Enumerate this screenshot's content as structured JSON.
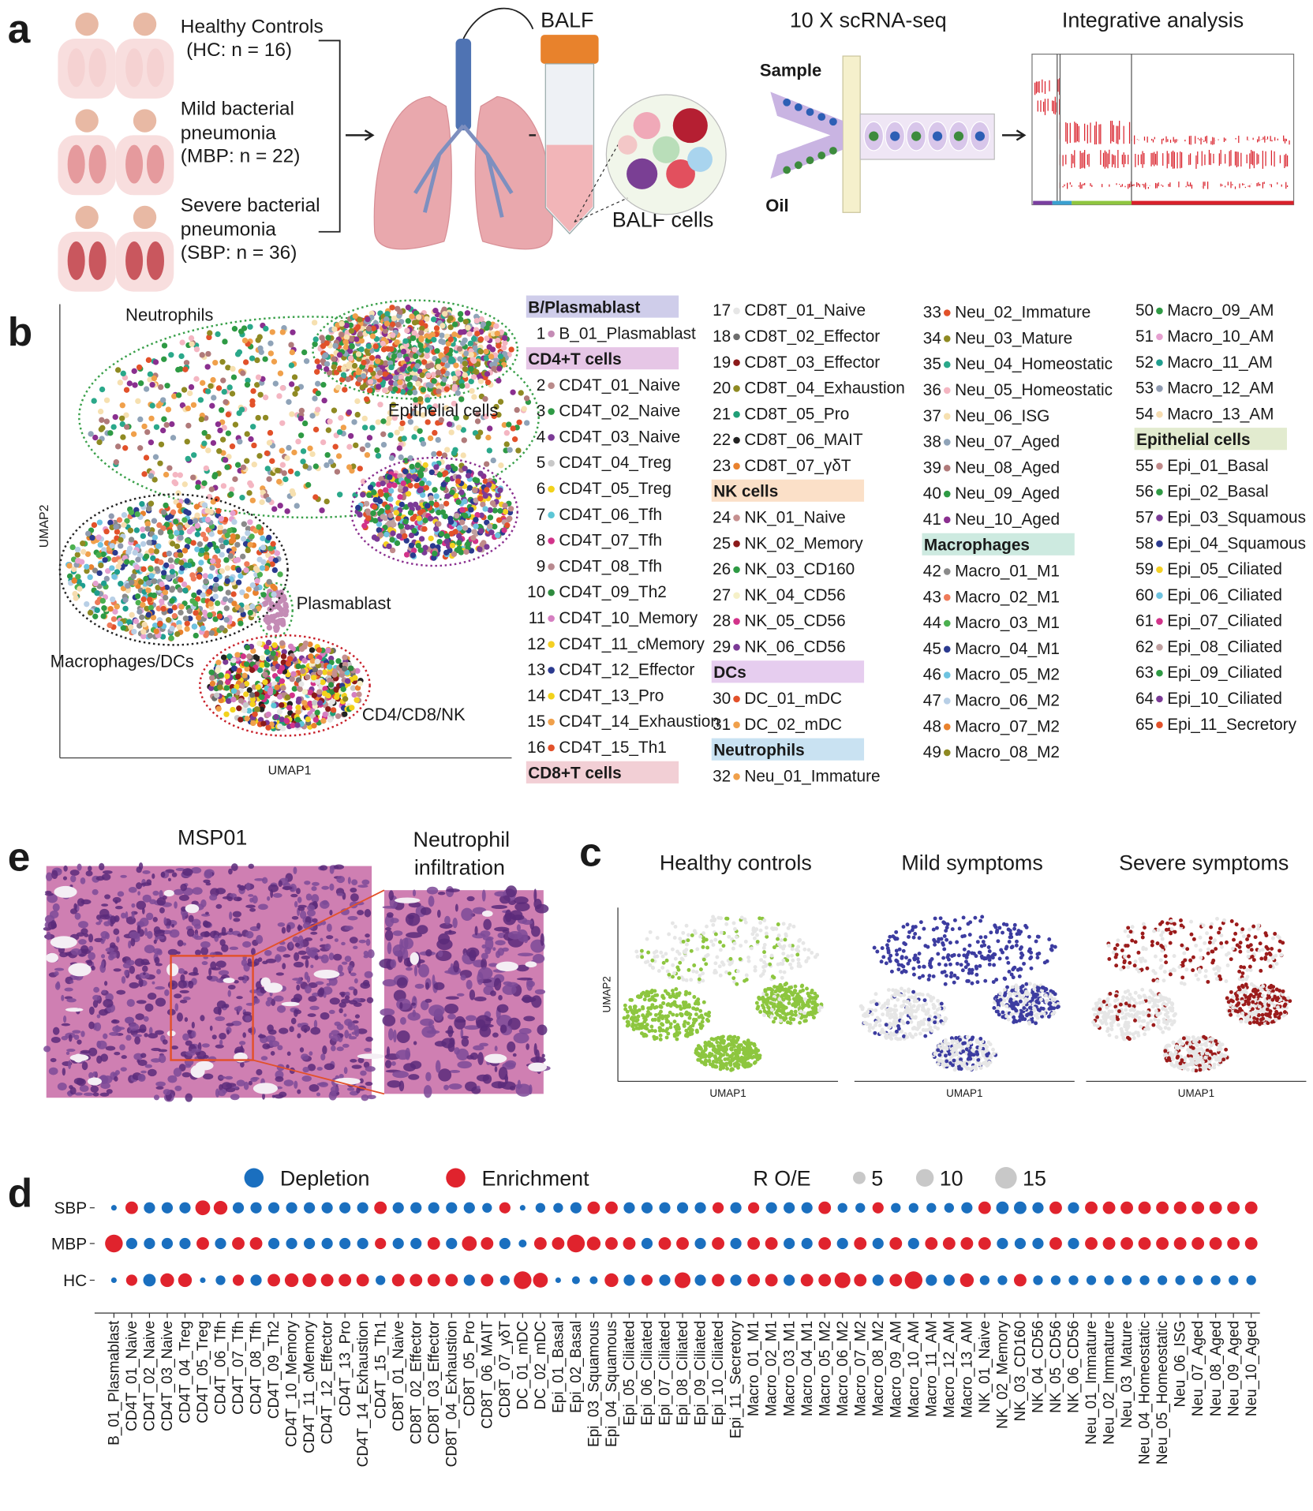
{
  "panel_a": {
    "label": "a",
    "groups": [
      {
        "lines": [
          "Healthy Controls",
          "(HC: n = 16)"
        ]
      },
      {
        "lines": [
          "Mild bacterial",
          "pneumonia",
          "(MBP: n = 22)"
        ]
      },
      {
        "lines": [
          "Severe bacterial",
          "pneumonia",
          "(SBP: n = 36)"
        ]
      }
    ],
    "balf": "BALF",
    "balf_cells": "BALF cells",
    "seq_title": "10 X scRNA-seq",
    "sample": "Sample",
    "oil": "Oil",
    "analysis_title": "Integrative analysis"
  },
  "panel_b": {
    "label": "b",
    "x_axis": "UMAP1",
    "y_axis": "UMAP2",
    "regions": [
      "Neutrophils",
      "Epithelial cells",
      "Plasmablast",
      "Macrophages/DCs",
      "CD4/CD8/NK"
    ],
    "legend_columns": [
      [
        {
          "header": "B/Plasmablast",
          "color": "#cfcdea"
        },
        {
          "n": 1,
          "name": "B_01_Plasmablast",
          "color": "#c48bb5"
        },
        {
          "header": "CD4+T cells",
          "color": "#e6c6e6"
        },
        {
          "n": 2,
          "name": "CD4T_01_Naive",
          "color": "#b98a8a"
        },
        {
          "n": 3,
          "name": "CD4T_02_Naive",
          "color": "#2e9a44"
        },
        {
          "n": 4,
          "name": "CD4T_03_Naive",
          "color": "#7b3a96"
        },
        {
          "n": 5,
          "name": "CD4T_04_Treg",
          "color": "#c8c8c8"
        },
        {
          "n": 6,
          "name": "CD4T_05_Treg",
          "color": "#f2d21b"
        },
        {
          "n": 7,
          "name": "CD4T_06_Tfh",
          "color": "#5cc6d6"
        },
        {
          "n": 8,
          "name": "CD4T_07_Tfh",
          "color": "#d2338a"
        },
        {
          "n": 9,
          "name": "CD4T_08_Tfh",
          "color": "#b8898f"
        },
        {
          "n": 10,
          "name": "CD4T_09_Th2",
          "color": "#2e8b3e"
        },
        {
          "n": 11,
          "name": "CD4T_10_Memory",
          "color": "#d57fc1"
        },
        {
          "n": 12,
          "name": "CD4T_11_cMemory",
          "color": "#f4d023"
        },
        {
          "n": 13,
          "name": "CD4T_12_Effector",
          "color": "#2b3a8f"
        },
        {
          "n": 14,
          "name": "CD4T_13_Pro",
          "color": "#f2d21b"
        },
        {
          "n": 15,
          "name": "CD4T_14_Exhaustion",
          "color": "#f0a04b"
        },
        {
          "n": 16,
          "name": "CD4T_15_Th1",
          "color": "#e2512a"
        },
        {
          "header": "CD8+T cells",
          "color": "#f2cfd5"
        }
      ],
      [
        {
          "n": 17,
          "name": "CD8T_01_Naive",
          "color": "#e6e6e6"
        },
        {
          "n": 18,
          "name": "CD8T_02_Effector",
          "color": "#6d6d6d"
        },
        {
          "n": 19,
          "name": "CD8T_03_Effector",
          "color": "#8b1a1a"
        },
        {
          "n": 20,
          "name": "CD8T_04_Exhaustion",
          "color": "#8f8a23"
        },
        {
          "n": 21,
          "name": "CD8T_05_Pro",
          "color": "#1f9e77"
        },
        {
          "n": 22,
          "name": "CD8T_06_MAIT",
          "color": "#222222"
        },
        {
          "n": 23,
          "name": "CD8T_07_γδT",
          "color": "#e9822e"
        },
        {
          "header": "NK cells",
          "color": "#fbe0c8"
        },
        {
          "n": 24,
          "name": "NK_01_Naive",
          "color": "#c58f8f"
        },
        {
          "n": 25,
          "name": "NK_02_Memory",
          "color": "#8b1a1a"
        },
        {
          "n": 26,
          "name": "NK_03_CD160",
          "color": "#2e9a44"
        },
        {
          "n": 27,
          "name": "NK_04_CD56",
          "color": "#f5f0c8"
        },
        {
          "n": 28,
          "name": "NK_05_CD56",
          "color": "#d2338a"
        },
        {
          "n": 29,
          "name": "NK_06_CD56",
          "color": "#7b3a96"
        },
        {
          "header": "DCs",
          "color": "#e6cdef"
        },
        {
          "n": 30,
          "name": "DC_01_mDC",
          "color": "#e2512a"
        },
        {
          "n": 31,
          "name": "DC_02_mDC",
          "color": "#f0a04b"
        },
        {
          "header": "Neutrophils",
          "color": "#c9e2f2"
        },
        {
          "n": 32,
          "name": "Neu_01_Immature",
          "color": "#f0a04b"
        }
      ],
      [
        {
          "n": 33,
          "name": "Neu_02_Immature",
          "color": "#e2512a"
        },
        {
          "n": 34,
          "name": "Neu_03_Mature",
          "color": "#8f8a23"
        },
        {
          "n": 35,
          "name": "Neu_04_Homeostatic",
          "color": "#2aa88a"
        },
        {
          "n": 36,
          "name": "Neu_05_Homeostatic",
          "color": "#f4b6c2"
        },
        {
          "n": 37,
          "name": "Neu_06_ISG",
          "color": "#f6e0b0"
        },
        {
          "n": 38,
          "name": "Neu_07_Aged",
          "color": "#8fa3b8"
        },
        {
          "n": 39,
          "name": "Neu_08_Aged",
          "color": "#b07a7a"
        },
        {
          "n": 40,
          "name": "Neu_09_Aged",
          "color": "#2e9a44"
        },
        {
          "n": 41,
          "name": "Neu_10_Aged",
          "color": "#8a2f8f"
        },
        {
          "header": "Macrophages",
          "color": "#cdeae0"
        },
        {
          "n": 42,
          "name": "Macro_01_M1",
          "color": "#8a8a8a"
        },
        {
          "n": 43,
          "name": "Macro_02_M1",
          "color": "#ef7b5a"
        },
        {
          "n": 44,
          "name": "Macro_03_M1",
          "color": "#4bb04f"
        },
        {
          "n": 45,
          "name": "Macro_04_M1",
          "color": "#2b3a8f"
        },
        {
          "n": 46,
          "name": "Macro_05_M2",
          "color": "#6ec3e0"
        },
        {
          "n": 47,
          "name": "Macro_06_M2",
          "color": "#b8cfe6"
        },
        {
          "n": 48,
          "name": "Macro_07_M2",
          "color": "#e9822e"
        },
        {
          "n": 49,
          "name": "Macro_08_M2",
          "color": "#8f8a23"
        }
      ],
      [
        {
          "n": 50,
          "name": "Macro_09_AM",
          "color": "#2e9a44"
        },
        {
          "n": 51,
          "name": "Macro_10_AM",
          "color": "#e6a0d0"
        },
        {
          "n": 52,
          "name": "Macro_11_AM",
          "color": "#1f9e8f"
        },
        {
          "n": 53,
          "name": "Macro_12_AM",
          "color": "#8f9ab0"
        },
        {
          "n": 54,
          "name": "Macro_13_AM",
          "color": "#f6dcb0"
        },
        {
          "header": "Epithelial cells",
          "color": "#e2ebcf"
        },
        {
          "n": 55,
          "name": "Epi_01_Basal",
          "color": "#c08a8a"
        },
        {
          "n": 56,
          "name": "Epi_02_Basal",
          "color": "#2e9a44"
        },
        {
          "n": 57,
          "name": "Epi_03_Squamous",
          "color": "#7b3a96"
        },
        {
          "n": 58,
          "name": "Epi_04_Squamous",
          "color": "#2b3a8f"
        },
        {
          "n": 59,
          "name": "Epi_05_Ciliated",
          "color": "#f4d023"
        },
        {
          "n": 60,
          "name": "Epi_06_Ciliated",
          "color": "#6ec3e0"
        },
        {
          "n": 61,
          "name": "Epi_07_Ciliated",
          "color": "#d2338a"
        },
        {
          "n": 62,
          "name": "Epi_08_Ciliated",
          "color": "#c0a0a0"
        },
        {
          "n": 63,
          "name": "Epi_09_Ciliated",
          "color": "#2e9a44"
        },
        {
          "n": 64,
          "name": "Epi_10_Ciliated",
          "color": "#7b3a96"
        },
        {
          "n": 65,
          "name": "Epi_11_Secretory",
          "color": "#e2512a"
        }
      ]
    ]
  },
  "panel_c": {
    "label": "c",
    "x_axis": "UMAP1",
    "y_axis": "UMAP2",
    "panels": [
      {
        "title": "Healthy controls",
        "color": "#8dc63f"
      },
      {
        "title": "Mild symptoms",
        "color": "#3c3ca0"
      },
      {
        "title": "Severe symptoms",
        "color": "#9b1b1b"
      }
    ]
  },
  "panel_d": {
    "label": "d",
    "legend": [
      {
        "name": "Depletion",
        "color": "#1a6fbf"
      },
      {
        "name": "Enrichment",
        "color": "#e0232d"
      }
    ],
    "size_title": "R O/E",
    "size_legend": [
      5,
      10,
      15
    ],
    "rows": [
      {
        "name": "SBP",
        "values": [
          1,
          5,
          4,
          4,
          4,
          7,
          6,
          4,
          4,
          4,
          4,
          4,
          4,
          4,
          4,
          5,
          4,
          4,
          4,
          4,
          4,
          3,
          4,
          1,
          3,
          3,
          4,
          5,
          5,
          4,
          4,
          4,
          4,
          4,
          4,
          4,
          4,
          4,
          4,
          4,
          5,
          3,
          3,
          4,
          3,
          3,
          3,
          3,
          4,
          5,
          5,
          5,
          4,
          5,
          4,
          5,
          5,
          5,
          5,
          5,
          5,
          5,
          5,
          5,
          5
        ],
        "colors": [
          "#1a6fbf",
          "#e0232d",
          "#1a6fbf",
          "#1a6fbf",
          "#1a6fbf",
          "#e0232d",
          "#e0232d",
          "#1a6fbf",
          "#1a6fbf",
          "#1a6fbf",
          "#1a6fbf",
          "#1a6fbf",
          "#1a6fbf",
          "#1a6fbf",
          "#1a6fbf",
          "#e0232d",
          "#1a6fbf",
          "#1a6fbf",
          "#1a6fbf",
          "#1a6fbf",
          "#1a6fbf",
          "#1a6fbf",
          "#e0232d",
          "#1a6fbf",
          "#1a6fbf",
          "#1a6fbf",
          "#1a6fbf",
          "#e0232d",
          "#e0232d",
          "#1a6fbf",
          "#1a6fbf",
          "#1a6fbf",
          "#1a6fbf",
          "#1a6fbf",
          "#e0232d",
          "#1a6fbf",
          "#e0232d",
          "#1a6fbf",
          "#1a6fbf",
          "#1a6fbf",
          "#e0232d",
          "#1a6fbf",
          "#1a6fbf",
          "#e0232d",
          "#1a6fbf",
          "#1a6fbf",
          "#1a6fbf",
          "#1a6fbf",
          "#1a6fbf",
          "#e0232d",
          "#1a6fbf",
          "#1a6fbf",
          "#1a6fbf",
          "#e0232d",
          "#1a6fbf",
          "#e0232d",
          "#e0232d",
          "#e0232d",
          "#e0232d",
          "#e0232d",
          "#e0232d",
          "#e0232d",
          "#e0232d",
          "#e0232d",
          "#e0232d"
        ]
      },
      {
        "name": "MBP",
        "values": [
          10,
          4,
          4,
          4,
          4,
          5,
          4,
          5,
          5,
          4,
          4,
          4,
          4,
          4,
          4,
          4,
          4,
          4,
          5,
          4,
          7,
          5,
          4,
          2,
          5,
          5,
          10,
          6,
          5,
          5,
          4,
          5,
          5,
          4,
          5,
          4,
          5,
          5,
          4,
          4,
          5,
          4,
          5,
          4,
          5,
          4,
          5,
          5,
          5,
          5,
          4,
          4,
          4,
          5,
          4,
          5,
          5,
          5,
          5,
          5,
          5,
          5,
          5,
          5,
          5
        ],
        "colors": [
          "#e0232d",
          "#1a6fbf",
          "#1a6fbf",
          "#1a6fbf",
          "#1a6fbf",
          "#e0232d",
          "#1a6fbf",
          "#e0232d",
          "#e0232d",
          "#1a6fbf",
          "#1a6fbf",
          "#1a6fbf",
          "#1a6fbf",
          "#1a6fbf",
          "#1a6fbf",
          "#e0232d",
          "#1a6fbf",
          "#1a6fbf",
          "#e0232d",
          "#1a6fbf",
          "#e0232d",
          "#e0232d",
          "#1a6fbf",
          "#1a6fbf",
          "#e0232d",
          "#e0232d",
          "#e0232d",
          "#e0232d",
          "#e0232d",
          "#e0232d",
          "#1a6fbf",
          "#e0232d",
          "#e0232d",
          "#1a6fbf",
          "#e0232d",
          "#1a6fbf",
          "#e0232d",
          "#e0232d",
          "#1a6fbf",
          "#1a6fbf",
          "#e0232d",
          "#1a6fbf",
          "#e0232d",
          "#1a6fbf",
          "#e0232d",
          "#1a6fbf",
          "#e0232d",
          "#e0232d",
          "#e0232d",
          "#e0232d",
          "#1a6fbf",
          "#1a6fbf",
          "#1a6fbf",
          "#e0232d",
          "#1a6fbf",
          "#e0232d",
          "#e0232d",
          "#e0232d",
          "#e0232d",
          "#e0232d",
          "#e0232d",
          "#e0232d",
          "#e0232d",
          "#e0232d",
          "#e0232d"
        ]
      },
      {
        "name": "HC",
        "values": [
          1,
          4,
          5,
          6,
          6,
          1,
          3,
          4,
          4,
          5,
          6,
          6,
          5,
          5,
          5,
          3,
          5,
          5,
          5,
          5,
          4,
          5,
          3,
          10,
          7,
          1,
          2,
          2,
          6,
          4,
          4,
          4,
          8,
          4,
          5,
          4,
          5,
          5,
          4,
          5,
          5,
          8,
          5,
          4,
          5,
          10,
          4,
          4,
          6,
          3,
          3,
          5,
          3,
          3,
          3,
          3,
          3,
          3,
          3,
          3,
          3,
          3,
          3,
          3,
          3
        ],
        "colors": [
          "#1a6fbf",
          "#e0232d",
          "#1a6fbf",
          "#e0232d",
          "#e0232d",
          "#1a6fbf",
          "#1a6fbf",
          "#e0232d",
          "#1a6fbf",
          "#e0232d",
          "#e0232d",
          "#e0232d",
          "#e0232d",
          "#e0232d",
          "#e0232d",
          "#1a6fbf",
          "#e0232d",
          "#e0232d",
          "#e0232d",
          "#e0232d",
          "#1a6fbf",
          "#e0232d",
          "#1a6fbf",
          "#e0232d",
          "#e0232d",
          "#1a6fbf",
          "#1a6fbf",
          "#1a6fbf",
          "#e0232d",
          "#1a6fbf",
          "#e0232d",
          "#1a6fbf",
          "#e0232d",
          "#1a6fbf",
          "#e0232d",
          "#1a6fbf",
          "#e0232d",
          "#e0232d",
          "#1a6fbf",
          "#e0232d",
          "#e0232d",
          "#e0232d",
          "#e0232d",
          "#1a6fbf",
          "#e0232d",
          "#e0232d",
          "#1a6fbf",
          "#1a6fbf",
          "#e0232d",
          "#1a6fbf",
          "#1a6fbf",
          "#e0232d",
          "#1a6fbf",
          "#1a6fbf",
          "#1a6fbf",
          "#1a6fbf",
          "#1a6fbf",
          "#1a6fbf",
          "#1a6fbf",
          "#1a6fbf",
          "#1a6fbf",
          "#1a6fbf",
          "#1a6fbf",
          "#1a6fbf",
          "#1a6fbf"
        ]
      }
    ],
    "categories": [
      "B_01_Plasmablast",
      "CD4T_01_Naive",
      "CD4T_02_Naive",
      "CD4T_03_Naive",
      "CD4T_04_Treg",
      "CD4T_05_Treg",
      "CD4T_06_Tfh",
      "CD4T_07_Tfh",
      "CD4T_08_Tfh",
      "CD4T_09_Th2",
      "CD4T_10_Memory",
      "CD4T_11_cMemory",
      "CD4T_12_Effector",
      "CD4T_13_Pro",
      "CD4T_14_Exhaustion",
      "CD4T_15_Th1",
      "CD8T_01_Naive",
      "CD8T_02_Effector",
      "CD8T_03_Effector",
      "CD8T_04_Exhaustion",
      "CD8T_05_Pro",
      "CD8T_06_MAIT",
      "CD8T_07_γδT",
      "DC_01_mDC",
      "DC_02_mDC",
      "Epi_01_Basal",
      "Epi_02_Basal",
      "Epi_03_Squamous",
      "Epi_04_Squamous",
      "Epi_05_Ciliated",
      "Epi_06_Ciliated",
      "Epi_07_Ciliated",
      "Epi_08_Ciliated",
      "Epi_09_Ciliated",
      "Epi_10_Ciliated",
      "Epi_11_Secretory",
      "Macro_01_M1",
      "Macro_02_M1",
      "Macro_03_M1",
      "Macro_04_M1",
      "Macro_05_M2",
      "Macro_06_M2",
      "Macro_07_M2",
      "Macro_08_M2",
      "Macro_09_AM",
      "Macro_10_AM",
      "Macro_11_AM",
      "Macro_12_AM",
      "Macro_13_AM",
      "NK_01_Naive",
      "NK_02_Memory",
      "NK_03_CD160",
      "NK_04_CD56",
      "NK_05_CD56",
      "NK_06_CD56",
      "Neu_01_Immature",
      "Neu_02_Immature",
      "Neu_03_Mature",
      "Neu_04_Homeostatic",
      "Neu_05_Homeostatic",
      "Neu_06_ISG",
      "Neu_07_Aged",
      "Neu_08_Aged",
      "Neu_09_Aged",
      "Neu_10_Aged"
    ]
  },
  "panel_e": {
    "label": "e",
    "title": "MSP01",
    "zoom_title": [
      "Neutrophil",
      "infiltration"
    ]
  }
}
